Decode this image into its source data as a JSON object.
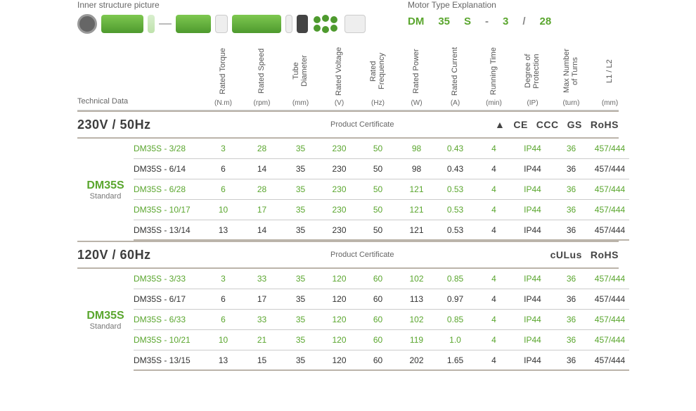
{
  "labels": {
    "innerPic": "Inner structure picture",
    "motorExp": "Motor Type Explanation",
    "techData": "Technical Data",
    "cert": "Product Certificate"
  },
  "motorType": {
    "p1": "DM",
    "p2": "35",
    "p3": "S",
    "sep1": "-",
    "p4": "3",
    "sep2": "/",
    "p5": "28"
  },
  "columns": [
    {
      "name": "Rated Torque",
      "unit": "(N.m)"
    },
    {
      "name": "Rated Speed",
      "unit": "(rpm)"
    },
    {
      "name": "Tube Diameter",
      "unit": "(mm)"
    },
    {
      "name": "Rated Voltage",
      "unit": "(V)"
    },
    {
      "name": "Rated Frequency",
      "unit": "(Hz)"
    },
    {
      "name": "Rated Power",
      "unit": "(W)"
    },
    {
      "name": "Rated Current",
      "unit": "(A)"
    },
    {
      "name": "Running Time",
      "unit": "(min)"
    },
    {
      "name": "Degree of Protection",
      "unit": "(IP)"
    },
    {
      "name": "Max Number of Turns",
      "unit": "(turn)"
    },
    {
      "name": "L1 / L2",
      "unit": "(mm)"
    }
  ],
  "sections": [
    {
      "title": "230V / 50Hz",
      "series": "DM35S",
      "seriesSub": "Standard",
      "certs": [
        "▲",
        "CE",
        "CCC",
        "GS",
        "RoHS"
      ],
      "rows": [
        {
          "hl": true,
          "model": "DM35S - 3/28",
          "c": [
            "3",
            "28",
            "35",
            "230",
            "50",
            "98",
            "0.43",
            "4",
            "IP44",
            "36",
            "457/444"
          ]
        },
        {
          "hl": false,
          "model": "DM35S - 6/14",
          "c": [
            "6",
            "14",
            "35",
            "230",
            "50",
            "98",
            "0.43",
            "4",
            "IP44",
            "36",
            "457/444"
          ]
        },
        {
          "hl": true,
          "model": "DM35S - 6/28",
          "c": [
            "6",
            "28",
            "35",
            "230",
            "50",
            "121",
            "0.53",
            "4",
            "IP44",
            "36",
            "457/444"
          ]
        },
        {
          "hl": true,
          "model": "DM35S - 10/17",
          "c": [
            "10",
            "17",
            "35",
            "230",
            "50",
            "121",
            "0.53",
            "4",
            "IP44",
            "36",
            "457/444"
          ]
        },
        {
          "hl": false,
          "model": "DM35S - 13/14",
          "c": [
            "13",
            "14",
            "35",
            "230",
            "50",
            "121",
            "0.53",
            "4",
            "IP44",
            "36",
            "457/444"
          ]
        }
      ]
    },
    {
      "title": "120V / 60Hz",
      "series": "DM35S",
      "seriesSub": "Standard",
      "certs": [
        "cULus",
        "RoHS"
      ],
      "rows": [
        {
          "hl": true,
          "model": "DM35S - 3/33",
          "c": [
            "3",
            "33",
            "35",
            "120",
            "60",
            "102",
            "0.85",
            "4",
            "IP44",
            "36",
            "457/444"
          ]
        },
        {
          "hl": false,
          "model": "DM35S - 6/17",
          "c": [
            "6",
            "17",
            "35",
            "120",
            "60",
            "113",
            "0.97",
            "4",
            "IP44",
            "36",
            "457/444"
          ]
        },
        {
          "hl": true,
          "model": "DM35S - 6/33",
          "c": [
            "6",
            "33",
            "35",
            "120",
            "60",
            "102",
            "0.85",
            "4",
            "IP44",
            "36",
            "457/444"
          ]
        },
        {
          "hl": true,
          "model": "DM35S - 10/21",
          "c": [
            "10",
            "21",
            "35",
            "120",
            "60",
            "119",
            "1.0",
            "4",
            "IP44",
            "36",
            "457/444"
          ]
        },
        {
          "hl": false,
          "model": "DM35S - 13/15",
          "c": [
            "13",
            "15",
            "35",
            "120",
            "60",
            "202",
            "1.65",
            "4",
            "IP44",
            "36",
            "457/444"
          ]
        }
      ]
    }
  ],
  "colors": {
    "accent": "#5aa62e"
  }
}
